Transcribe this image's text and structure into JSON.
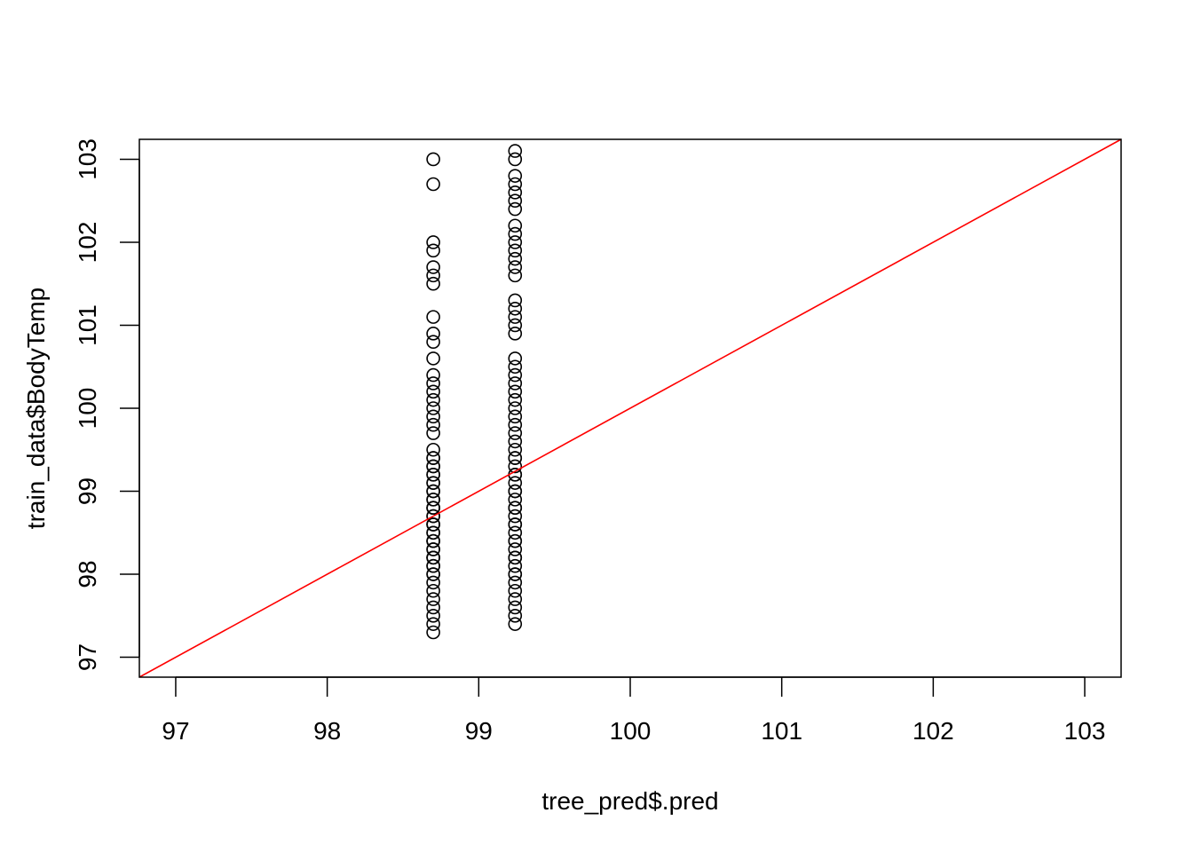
{
  "chart_data": {
    "type": "scatter",
    "title": "",
    "xlabel": "tree_pred$.pred",
    "ylabel": "train_data$BodyTemp",
    "xlim": [
      96.76,
      103.24
    ],
    "ylim": [
      96.76,
      103.24
    ],
    "xticks": [
      "97",
      "98",
      "99",
      "100",
      "101",
      "102",
      "103"
    ],
    "yticks": [
      "97",
      "98",
      "99",
      "100",
      "101",
      "102",
      "103"
    ],
    "grid": false,
    "series": [
      {
        "x": [
          98.7,
          98.7,
          98.7,
          98.7,
          98.7,
          98.7,
          98.7,
          98.7,
          98.7,
          98.7,
          98.7,
          98.7,
          98.7,
          98.7,
          98.7,
          98.7,
          98.7,
          98.7,
          98.7,
          98.7,
          98.7,
          98.7,
          98.7,
          98.7,
          98.7,
          98.7,
          98.7,
          98.7,
          98.7,
          98.7,
          98.7,
          98.7,
          98.7,
          98.7,
          98.7,
          98.7,
          98.7,
          98.7,
          98.7,
          98.7,
          98.7,
          98.7,
          98.7,
          98.7,
          98.7,
          98.7,
          98.7,
          98.7,
          98.7,
          98.7,
          98.7,
          98.7,
          98.7,
          98.7,
          98.7,
          98.7,
          98.7,
          98.7,
          98.7,
          98.7,
          98.7
        ],
        "y": [
          97.3,
          97.4,
          97.5,
          97.6,
          97.7,
          97.8,
          97.9,
          98.0,
          98.1,
          98.2,
          98.3,
          98.4,
          98.5,
          98.6,
          98.7,
          98.8,
          98.9,
          99.0,
          99.1,
          99.2,
          99.3,
          99.4,
          99.5,
          99.7,
          99.8,
          99.9,
          100.0,
          100.1,
          100.2,
          100.3,
          100.4,
          100.6,
          100.8,
          100.9,
          101.1,
          101.5,
          101.6,
          101.7,
          101.9,
          102.0,
          102.7,
          103.0,
          98.0,
          98.1,
          98.2,
          98.3,
          98.4,
          98.5,
          98.6,
          98.7,
          98.8,
          98.9,
          99.0,
          99.1,
          99.2,
          99.3,
          99.4,
          98.2,
          98.4,
          98.6,
          98.8
        ]
      },
      {
        "x": [
          99.24,
          99.24,
          99.24,
          99.24,
          99.24,
          99.24,
          99.24,
          99.24,
          99.24,
          99.24,
          99.24,
          99.24,
          99.24,
          99.24,
          99.24,
          99.24,
          99.24,
          99.24,
          99.24,
          99.24,
          99.24,
          99.24,
          99.24,
          99.24,
          99.24,
          99.24,
          99.24,
          99.24,
          99.24,
          99.24,
          99.24,
          99.24,
          99.24,
          99.24,
          99.24,
          99.24,
          99.24,
          99.24,
          99.24,
          99.24,
          99.24,
          99.24,
          99.24,
          99.24,
          99.24,
          99.24,
          99.24,
          99.24,
          99.24,
          99.24,
          99.24,
          99.24,
          99.24,
          99.24,
          99.24,
          99.24,
          99.24,
          99.24,
          99.24,
          99.24
        ],
        "y": [
          97.4,
          97.5,
          97.6,
          97.7,
          97.8,
          97.9,
          98.0,
          98.1,
          98.2,
          98.3,
          98.4,
          98.5,
          98.6,
          98.7,
          98.8,
          98.9,
          99.0,
          99.1,
          99.2,
          99.3,
          99.4,
          99.5,
          99.6,
          99.7,
          99.8,
          99.9,
          100.0,
          100.1,
          100.2,
          100.3,
          100.4,
          100.5,
          100.6,
          100.9,
          101.0,
          101.1,
          101.2,
          101.3,
          101.6,
          101.7,
          101.8,
          101.9,
          102.0,
          102.1,
          102.2,
          102.4,
          102.5,
          102.6,
          102.7,
          102.8,
          103.0,
          103.1,
          98.0,
          98.2,
          98.4,
          98.6,
          98.8,
          99.0,
          99.2,
          99.4
        ]
      }
    ],
    "reference_line": {
      "intercept": 0,
      "slope": 1,
      "color": "#ff0000"
    },
    "point_color": "#000000"
  }
}
